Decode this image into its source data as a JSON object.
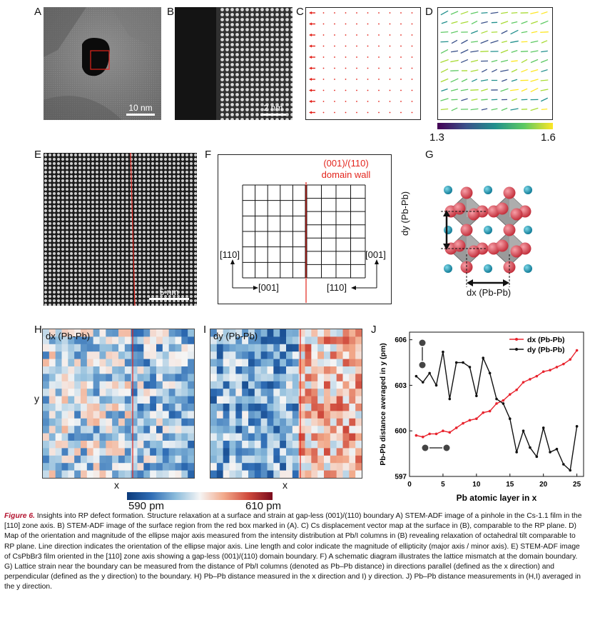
{
  "panels": {
    "A": {
      "label": "A",
      "scalebar": "10 nm"
    },
    "B": {
      "label": "B",
      "scalebar": "2 nm"
    },
    "C": {
      "label": "C"
    },
    "D": {
      "label": "D",
      "colorbar_min": "1.3",
      "colorbar_max": "1.6"
    },
    "E": {
      "label": "E",
      "scalebar": "5 nm"
    },
    "F": {
      "label": "F",
      "domain_wall_title": "(001)/(110)",
      "domain_wall_subtitle": "domain wall",
      "left_vertical": "[110]",
      "left_horizontal": "[001]",
      "right_vertical": "[001]",
      "right_horizontal": "[110]"
    },
    "G": {
      "label": "G",
      "dy_label": "dy (Pb-Pb)",
      "dx_label": "dx (Pb-Pb)"
    },
    "H": {
      "label": "H",
      "title": "dx (Pb-Pb)",
      "xlabel": "x",
      "ylabel": "y"
    },
    "I": {
      "label": "I",
      "title": "dy (Pb-Pb)",
      "xlabel": "x"
    },
    "J": {
      "label": "J"
    }
  },
  "heatmap_colorbar": {
    "min_label": "590 pm",
    "max_label": "610 pm"
  },
  "chart_data": {
    "type": "line",
    "title": "",
    "xlabel": "Pb atomic layer in x",
    "ylabel": "Pb-Pb distance averaged in y (pm)",
    "xlim": [
      0,
      26
    ],
    "ylim": [
      597,
      606.5
    ],
    "xticks": [
      "0",
      "5",
      "10",
      "15",
      "20",
      "25"
    ],
    "yticks": [
      "597",
      "600",
      "603",
      "606"
    ],
    "legend_position": "top-right",
    "series": [
      {
        "name": "dx (Pb-Pb)",
        "color": "#e8232d",
        "x": [
          1,
          2,
          3,
          4,
          5,
          6,
          7,
          8,
          9,
          10,
          11,
          12,
          13,
          14,
          15,
          16,
          17,
          18,
          19,
          20,
          21,
          22,
          23,
          24,
          25
        ],
        "y": [
          599.7,
          599.6,
          599.8,
          599.8,
          600.0,
          599.9,
          600.2,
          600.5,
          600.7,
          600.8,
          601.2,
          601.3,
          601.8,
          602.0,
          602.4,
          602.7,
          603.2,
          603.4,
          603.6,
          603.9,
          604.0,
          604.2,
          604.4,
          604.7,
          605.3
        ]
      },
      {
        "name": "dy (Pb-Pb)",
        "color": "#111111",
        "x": [
          1,
          2,
          3,
          4,
          5,
          6,
          7,
          8,
          9,
          10,
          11,
          12,
          13,
          14,
          15,
          16,
          17,
          18,
          19,
          20,
          21,
          22,
          23,
          24,
          25
        ],
        "y": [
          603.6,
          603.2,
          603.8,
          603.0,
          605.2,
          602.1,
          604.5,
          604.5,
          604.2,
          602.3,
          604.8,
          603.8,
          602.1,
          601.8,
          600.8,
          598.6,
          600.0,
          598.9,
          598.3,
          600.2,
          598.6,
          598.8,
          597.8,
          597.4,
          600.3
        ]
      }
    ]
  },
  "caption": {
    "title": "Figure 6.",
    "text": "Insights into RP defect formation. Structure relaxation at a surface and strain at gap-less (001)/(110) boundary A) STEM-ADF image of a pinhole in the Cs-1.1 film in the [110] zone axis. B) STEM-ADF image of the surface region from the red box marked in (A). C) Cs displacement vector map at the surface in (B), comparable to the RP plane. D) Map of the orientation and magnitude of the ellipse major axis measured from the intensity distribution at Pb/I columns in (B) revealing relaxation of octahedral tilt comparable to RP plane. Line direction indicates the orientation of the ellipse major axis. Line length and color indicate the magnitude of ellipticity (major axis / minor axis). E) STEM-ADF image of CsPbBr3 film oriented in the [110] zone axis showing a gap-less (001)/(110) domain boundary. F) A schematic diagram illustrates the lattice mismatch at the domain boundary. G) Lattice strain near the boundary can be measured from the distance of Pb/I columns (denoted as Pb–Pb distance) in directions parallel (defined as the x direction) and perpendicular (defined as the y direction) to the boundary. H) Pb–Pb distance measured in the x direction and I) y direction. J) Pb–Pb distance measurements in (H,I) averaged in the y direction."
  }
}
